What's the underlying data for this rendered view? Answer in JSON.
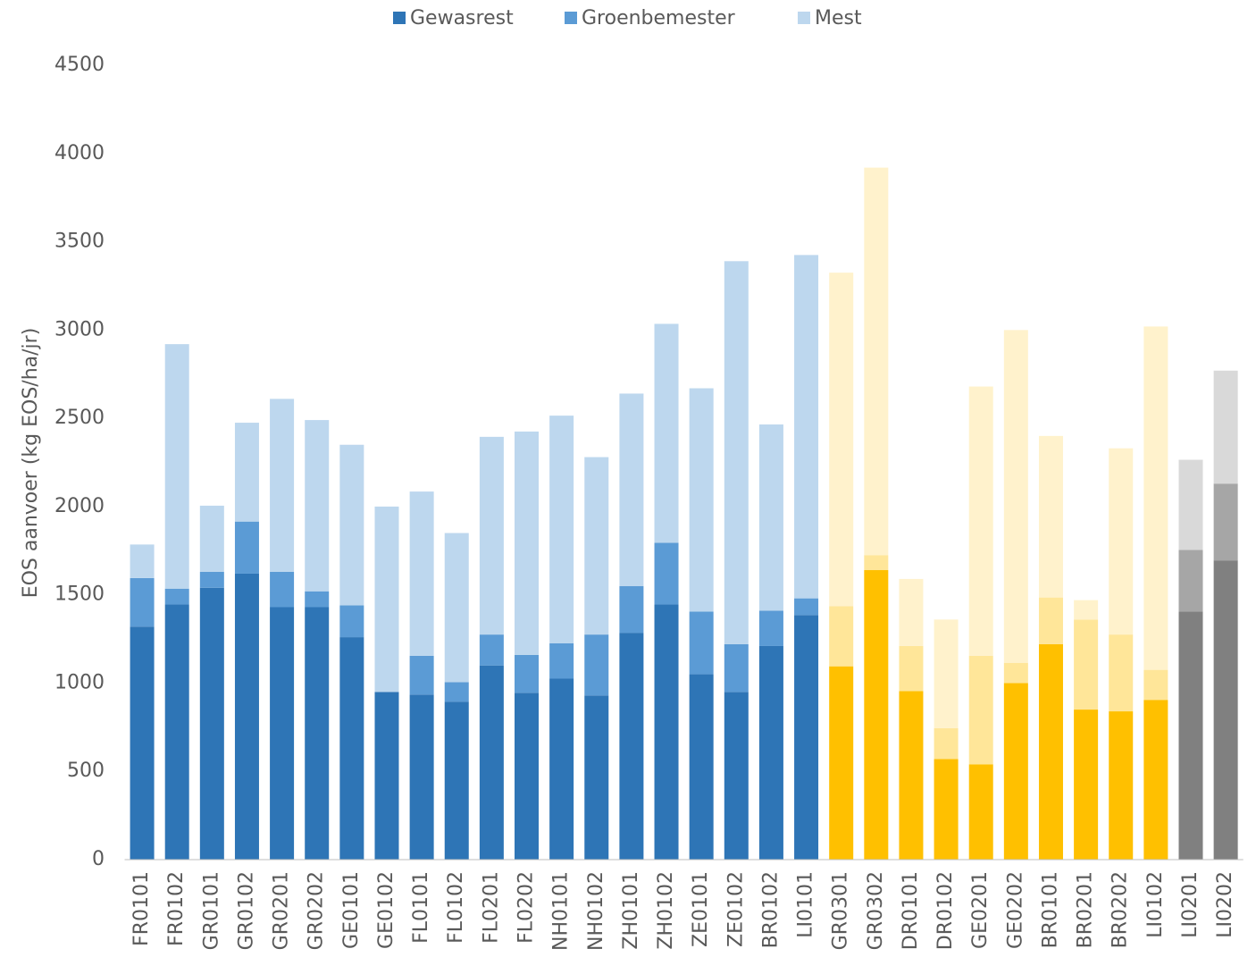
{
  "chart_data": {
    "type": "stacked_bar",
    "y_label": "EOS aanvoer (kg EOS/ha/jr)",
    "categories": [
      "FR0101",
      "FR0102",
      "GR0101",
      "GR0102",
      "GR0201",
      "GR0202",
      "GE0101",
      "GE0102",
      "FL0101",
      "FL0102",
      "FL0201",
      "FL0202",
      "NH0101",
      "NH0102",
      "ZH0101",
      "ZH0102",
      "ZE0101",
      "ZE0102",
      "BR0102",
      "LI0101",
      "GR0301",
      "GR0302",
      "DR0101",
      "DR0102",
      "GE0201",
      "GE0202",
      "BR0101",
      "BR0201",
      "BR0202",
      "LI0102",
      "LI0201",
      "LI0202"
    ],
    "series": [
      {
        "name": "Gewasrest",
        "color": "#2e75b6",
        "values": [
          1320,
          1445,
          1540,
          1620,
          1430,
          1430,
          1260,
          950,
          935,
          895,
          1100,
          945,
          1025,
          930,
          1285,
          1445,
          1050,
          950,
          1210,
          1385,
          1095,
          1640,
          955,
          570,
          540,
          1000,
          1220,
          850,
          840,
          905,
          1405,
          1695
        ],
        "colors": [
          "#2e75b6",
          "#2e75b6",
          "#2e75b6",
          "#2e75b6",
          "#2e75b6",
          "#2e75b6",
          "#2e75b6",
          "#2e75b6",
          "#2e75b6",
          "#2e75b6",
          "#2e75b6",
          "#2e75b6",
          "#2e75b6",
          "#2e75b6",
          "#2e75b6",
          "#2e75b6",
          "#2e75b6",
          "#2e75b6",
          "#2e75b6",
          "#2e75b6",
          "#ffc000",
          "#ffc000",
          "#ffc000",
          "#ffc000",
          "#ffc000",
          "#ffc000",
          "#ffc000",
          "#ffc000",
          "#ffc000",
          "#ffc000",
          "#808080",
          "#808080"
        ]
      },
      {
        "name": "Groenbemester",
        "color": "#5b9bd5",
        "values": [
          275,
          90,
          90,
          295,
          200,
          90,
          180,
          0,
          220,
          110,
          175,
          215,
          200,
          345,
          265,
          350,
          355,
          270,
          200,
          95,
          340,
          85,
          255,
          175,
          615,
          115,
          265,
          510,
          435,
          170,
          350,
          435
        ],
        "colors": [
          "#5b9bd5",
          "#5b9bd5",
          "#5b9bd5",
          "#5b9bd5",
          "#5b9bd5",
          "#5b9bd5",
          "#5b9bd5",
          "#5b9bd5",
          "#5b9bd5",
          "#5b9bd5",
          "#5b9bd5",
          "#5b9bd5",
          "#5b9bd5",
          "#5b9bd5",
          "#5b9bd5",
          "#5b9bd5",
          "#5b9bd5",
          "#5b9bd5",
          "#5b9bd5",
          "#5b9bd5",
          "#ffe699",
          "#ffe699",
          "#ffe699",
          "#ffe699",
          "#ffe699",
          "#ffe699",
          "#ffe699",
          "#ffe699",
          "#ffe699",
          "#ffe699",
          "#a6a6a6",
          "#a6a6a6"
        ]
      },
      {
        "name": "Mest",
        "color": "#bdd7ee",
        "values": [
          190,
          1385,
          375,
          560,
          980,
          970,
          910,
          1050,
          930,
          845,
          1120,
          1265,
          1290,
          1005,
          1090,
          1240,
          1265,
          2170,
          1055,
          1945,
          1890,
          2195,
          380,
          615,
          1525,
          1885,
          915,
          110,
          1055,
          1945,
          510,
          640
        ],
        "colors": [
          "#bdd7ee",
          "#bdd7ee",
          "#bdd7ee",
          "#bdd7ee",
          "#bdd7ee",
          "#bdd7ee",
          "#bdd7ee",
          "#bdd7ee",
          "#bdd7ee",
          "#bdd7ee",
          "#bdd7ee",
          "#bdd7ee",
          "#bdd7ee",
          "#bdd7ee",
          "#bdd7ee",
          "#bdd7ee",
          "#bdd7ee",
          "#bdd7ee",
          "#bdd7ee",
          "#bdd7ee",
          "#fff2cc",
          "#fff2cc",
          "#fff2cc",
          "#fff2cc",
          "#fff2cc",
          "#fff2cc",
          "#fff2cc",
          "#fff2cc",
          "#fff2cc",
          "#fff2cc",
          "#d9d9d9",
          "#d9d9d9"
        ]
      }
    ],
    "ylim": [
      0,
      4500
    ],
    "yticks": [
      0,
      500,
      1000,
      1500,
      2000,
      2500,
      3000,
      3500,
      4000,
      4500
    ],
    "grid": false,
    "legend": "top"
  }
}
